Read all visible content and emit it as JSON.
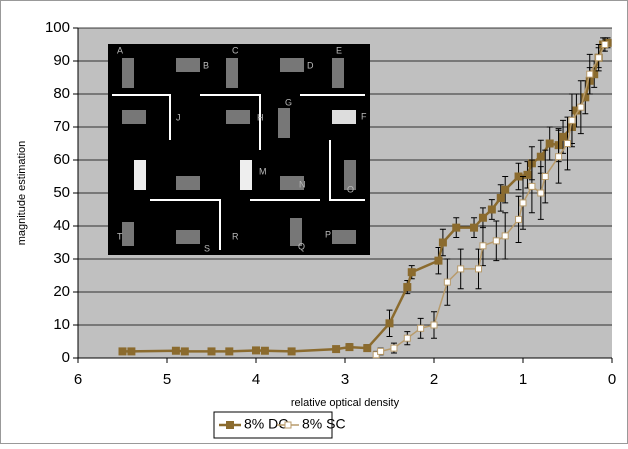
{
  "chart_data": {
    "type": "line",
    "xlabel": "relative optical density",
    "ylabel": "magnitude estimation",
    "xlim": [
      6,
      0
    ],
    "xticks": [
      6,
      5,
      4,
      3,
      2,
      1,
      0
    ],
    "ylim": [
      0,
      100
    ],
    "yticks": [
      0,
      10,
      20,
      30,
      40,
      50,
      60,
      70,
      80,
      90,
      100
    ],
    "grid": true,
    "inset_labels": [
      "A",
      "B",
      "C",
      "D",
      "E",
      "J",
      "H",
      "G",
      "F",
      "M",
      "N",
      "O",
      "T",
      "S",
      "R",
      "Q",
      "P"
    ],
    "series": [
      {
        "name": "8% DC",
        "color": "#8b6b2e",
        "marker": "filled-square",
        "x": [
          5.5,
          5.4,
          4.9,
          4.8,
          4.5,
          4.3,
          4.0,
          3.9,
          3.6,
          3.1,
          2.95,
          2.75,
          2.5,
          2.3,
          2.25,
          1.95,
          1.9,
          1.75,
          1.55,
          1.45,
          1.35,
          1.25,
          1.2,
          1.05,
          0.95,
          0.9,
          0.8,
          0.7,
          0.6,
          0.55,
          0.45,
          0.4,
          0.3,
          0.25,
          0.2,
          0.15,
          0.1,
          0.05
        ],
        "values": [
          2,
          2,
          2.2,
          2,
          2,
          2,
          2.3,
          2.2,
          2,
          2.7,
          3.3,
          3,
          10.5,
          21.5,
          26,
          29.5,
          35,
          39.5,
          39.5,
          42.5,
          45,
          48.5,
          51,
          55,
          55.5,
          59,
          61,
          65,
          64.5,
          67,
          70,
          75,
          79,
          84,
          86,
          91,
          95,
          95.5
        ],
        "errors": [
          0.5,
          0.5,
          0.5,
          0.5,
          0.5,
          0.5,
          0.5,
          0.5,
          0.5,
          0.8,
          1,
          1,
          4,
          2,
          2,
          4,
          4,
          3,
          3,
          3,
          3,
          4,
          4,
          4,
          4,
          5,
          5,
          5,
          5,
          5,
          5,
          5,
          5,
          4,
          4,
          3,
          2,
          1.5
        ]
      },
      {
        "name": "8% SC",
        "color": "#b89b6b",
        "marker": "open-square",
        "x": [
          2.65,
          2.6,
          2.45,
          2.3,
          2.15,
          2.0,
          1.85,
          1.7,
          1.5,
          1.45,
          1.3,
          1.2,
          1.05,
          1.0,
          0.9,
          0.8,
          0.75,
          0.6,
          0.5,
          0.45,
          0.35,
          0.25,
          0.15,
          0.08
        ],
        "values": [
          1,
          2,
          3,
          6,
          9,
          10,
          23,
          27,
          27,
          34,
          35.5,
          37,
          42,
          47,
          52,
          50,
          55,
          61,
          65,
          72,
          76,
          86,
          91,
          95
        ],
        "errors": [
          1,
          1,
          1.5,
          2,
          3,
          4,
          7,
          6,
          6,
          6,
          6,
          7,
          7,
          8,
          8,
          8,
          8,
          8,
          8,
          8,
          8,
          6,
          4,
          2
        ]
      }
    ]
  }
}
